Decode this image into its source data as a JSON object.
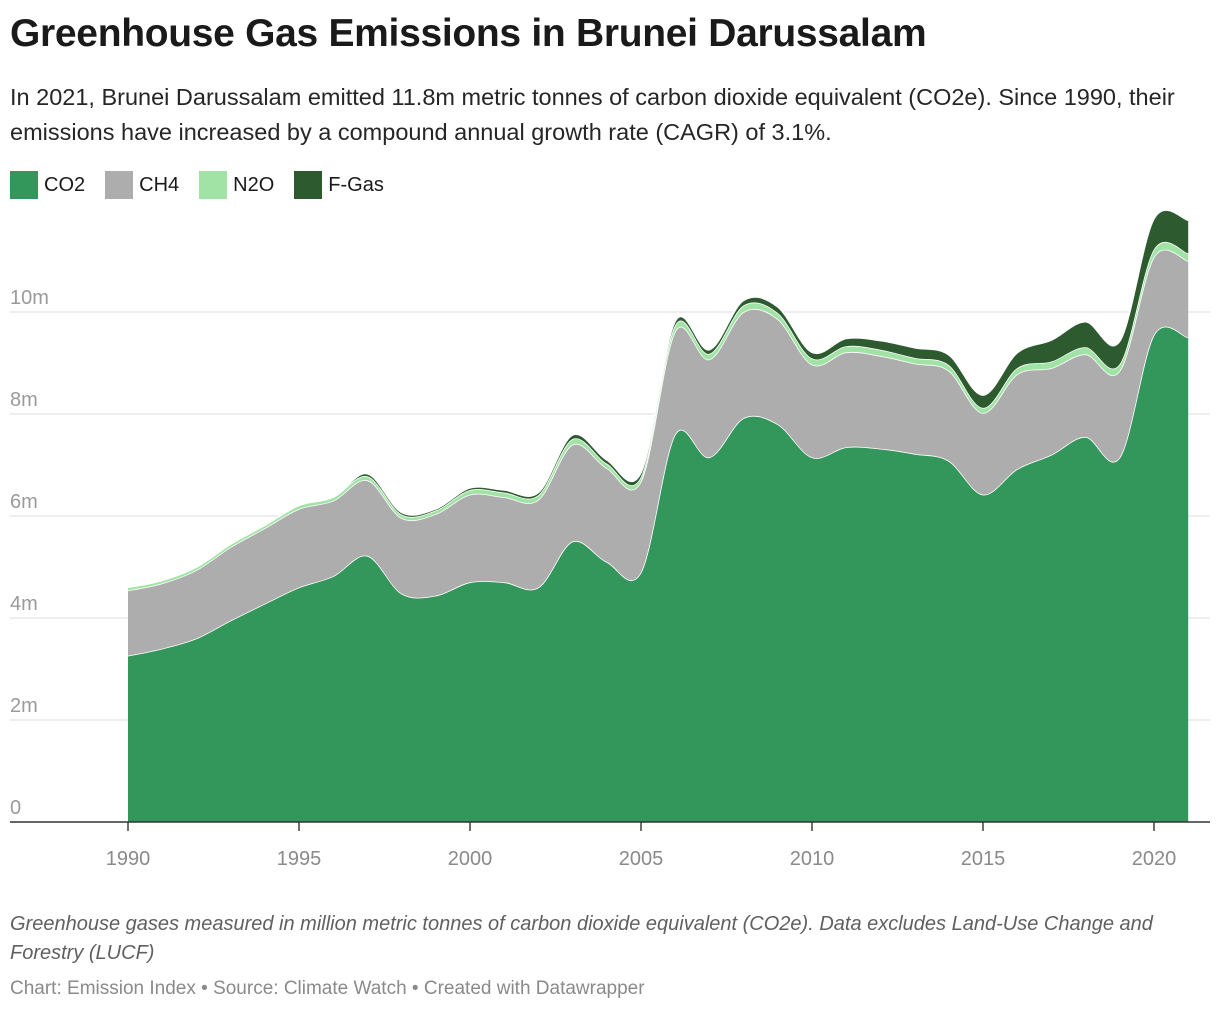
{
  "title": "Greenhouse Gas Emissions in Brunei Darussalam",
  "subtitle": "In 2021, Brunei Darussalam emitted 11.8m metric tonnes of carbon dioxide equivalent (CO2e). Since 1990, their emissions have increased by a compound annual growth rate (CAGR) of 3.1%.",
  "notes": "Greenhouse gases measured in million metric tonnes of carbon dioxide equivalent (CO2e). Data excludes Land-Use Change and Forestry (LUCF)",
  "byline": "Chart: Emission Index • Source: Climate Watch • Created with Datawrapper",
  "colors": {
    "CO2": "#33965a",
    "CH4": "#adadad",
    "N2O": "#a0e3a5",
    "F-Gas": "#2e5a30"
  },
  "chart_data": {
    "type": "area",
    "stacked": true,
    "grid": true,
    "legend_position": "top-left",
    "xlim": [
      1987,
      2022
    ],
    "ylim": [
      0,
      12
    ],
    "y_ticks": [
      0,
      2,
      4,
      6,
      8,
      10
    ],
    "y_tick_labels": [
      "0",
      "2m",
      "4m",
      "6m",
      "8m",
      "10m"
    ],
    "x_ticks": [
      1990,
      1995,
      2000,
      2005,
      2010,
      2015,
      2020
    ],
    "x": [
      1990,
      1991,
      1992,
      1993,
      1994,
      1995,
      1996,
      1997,
      1998,
      1999,
      2000,
      2001,
      2002,
      2003,
      2004,
      2005,
      2006,
      2007,
      2008,
      2009,
      2010,
      2011,
      2012,
      2013,
      2014,
      2015,
      2016,
      2017,
      2018,
      2019,
      2020,
      2021
    ],
    "series": [
      {
        "name": "CO2",
        "values": [
          3.26,
          3.4,
          3.6,
          3.95,
          4.28,
          4.6,
          4.82,
          5.22,
          4.48,
          4.44,
          4.7,
          4.7,
          4.6,
          5.5,
          5.1,
          4.9,
          7.6,
          7.15,
          7.92,
          7.8,
          7.15,
          7.35,
          7.32,
          7.22,
          7.08,
          6.42,
          6.92,
          7.2,
          7.55,
          7.15,
          9.55,
          9.5
        ]
      },
      {
        "name": "CH4",
        "values": [
          1.28,
          1.28,
          1.34,
          1.44,
          1.48,
          1.54,
          1.48,
          1.48,
          1.48,
          1.6,
          1.72,
          1.67,
          1.72,
          1.9,
          1.84,
          1.78,
          2.02,
          1.92,
          2.08,
          2.06,
          1.82,
          1.86,
          1.82,
          1.77,
          1.77,
          1.6,
          1.86,
          1.7,
          1.62,
          1.7,
          1.53,
          1.5
        ]
      },
      {
        "name": "N2O",
        "values": [
          0.06,
          0.06,
          0.06,
          0.06,
          0.06,
          0.07,
          0.07,
          0.08,
          0.07,
          0.07,
          0.09,
          0.09,
          0.09,
          0.11,
          0.09,
          0.09,
          0.12,
          0.11,
          0.13,
          0.12,
          0.12,
          0.12,
          0.12,
          0.11,
          0.11,
          0.1,
          0.12,
          0.13,
          0.14,
          0.13,
          0.15,
          0.15
        ]
      },
      {
        "name": "F-Gas",
        "values": [
          0.0,
          0.0,
          0.0,
          0.0,
          0.0,
          0.0,
          0.0,
          0.05,
          0.04,
          0.03,
          0.04,
          0.05,
          0.05,
          0.08,
          0.07,
          0.08,
          0.08,
          0.08,
          0.1,
          0.12,
          0.12,
          0.15,
          0.18,
          0.2,
          0.2,
          0.25,
          0.3,
          0.42,
          0.5,
          0.45,
          0.6,
          0.65
        ]
      }
    ]
  }
}
